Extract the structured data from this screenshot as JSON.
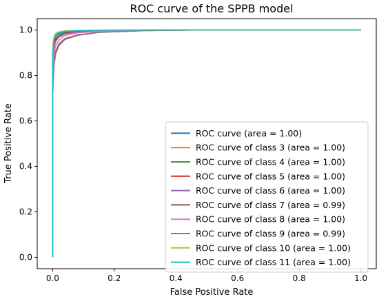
{
  "chart_data": {
    "type": "line",
    "title": "ROC curve of the SPPB model",
    "xlabel": "False Positive Rate",
    "ylabel": "True Positive Rate",
    "xlim": [
      -0.05,
      1.05
    ],
    "ylim": [
      -0.05,
      1.05
    ],
    "xticks": [
      0.0,
      0.2,
      0.4,
      0.6,
      0.8,
      1.0
    ],
    "yticks": [
      0.0,
      0.2,
      0.4,
      0.6,
      0.8,
      1.0
    ],
    "xtick_labels": [
      "0.0",
      "0.2",
      "0.4",
      "0.6",
      "0.8",
      "1.0"
    ],
    "ytick_labels": [
      "0.0",
      "0.2",
      "0.4",
      "0.6",
      "0.8",
      "1.0"
    ],
    "grid": false,
    "legend_position": "lower-right",
    "series": [
      {
        "name": "ROC curve (area = 1.00)",
        "color": "#1f77b4",
        "x": [
          0,
          0,
          0.002,
          0.005,
          0.01,
          0.02,
          0.04,
          0.08,
          0.15,
          0.3,
          0.5,
          1.0
        ],
        "y": [
          0,
          0.85,
          0.92,
          0.955,
          0.975,
          0.985,
          0.992,
          0.996,
          0.998,
          0.999,
          1.0,
          1.0
        ]
      },
      {
        "name": "ROC curve of class 3 (area = 1.00)",
        "color": "#ff7f0e",
        "x": [
          0,
          0,
          0.002,
          0.005,
          0.01,
          0.02,
          0.04,
          0.08,
          0.15,
          0.3,
          0.5,
          1.0
        ],
        "y": [
          0,
          0.88,
          0.94,
          0.965,
          0.98,
          0.99,
          0.995,
          0.998,
          0.999,
          1.0,
          1.0,
          1.0
        ]
      },
      {
        "name": "ROC curve of class 4 (area = 1.00)",
        "color": "#2ca02c",
        "x": [
          0,
          0,
          0.002,
          0.005,
          0.01,
          0.02,
          0.04,
          0.08,
          0.15,
          0.3,
          0.5,
          1.0
        ],
        "y": [
          0,
          0.84,
          0.91,
          0.945,
          0.965,
          0.978,
          0.988,
          0.994,
          0.997,
          0.999,
          1.0,
          1.0
        ]
      },
      {
        "name": "ROC curve of class 5 (area = 1.00)",
        "color": "#d62728",
        "x": [
          0,
          0,
          0.002,
          0.005,
          0.01,
          0.02,
          0.04,
          0.08,
          0.15,
          0.3,
          0.5,
          1.0
        ],
        "y": [
          0,
          0.82,
          0.9,
          0.935,
          0.958,
          0.972,
          0.985,
          0.993,
          0.997,
          0.999,
          1.0,
          1.0
        ]
      },
      {
        "name": "ROC curve of class 6 (area = 1.00)",
        "color": "#9467bd",
        "x": [
          0,
          0,
          0.002,
          0.005,
          0.01,
          0.02,
          0.04,
          0.08,
          0.15,
          0.3,
          0.5,
          1.0
        ],
        "y": [
          0,
          0.8,
          0.88,
          0.925,
          0.95,
          0.968,
          0.982,
          0.991,
          0.996,
          0.999,
          1.0,
          1.0
        ]
      },
      {
        "name": "ROC curve of class 7 (area = 0.99)",
        "color": "#8c564b",
        "x": [
          0,
          0,
          0.002,
          0.005,
          0.01,
          0.02,
          0.04,
          0.08,
          0.15,
          0.3,
          0.5,
          1.0
        ],
        "y": [
          0,
          0.7,
          0.8,
          0.865,
          0.905,
          0.938,
          0.962,
          0.978,
          0.99,
          0.997,
          1.0,
          1.0
        ]
      },
      {
        "name": "ROC curve of class 8 (area = 1.00)",
        "color": "#e377c2",
        "x": [
          0,
          0,
          0.002,
          0.005,
          0.01,
          0.02,
          0.04,
          0.08,
          0.15,
          0.3,
          0.5,
          1.0
        ],
        "y": [
          0,
          0.75,
          0.84,
          0.895,
          0.93,
          0.955,
          0.975,
          0.987,
          0.994,
          0.998,
          1.0,
          1.0
        ]
      },
      {
        "name": "ROC curve of class 9 (area = 0.99)",
        "color": "#7f7f7f",
        "x": [
          0,
          0,
          0.002,
          0.005,
          0.01,
          0.02,
          0.04,
          0.08,
          0.15,
          0.3,
          0.5,
          1.0
        ],
        "y": [
          0,
          0.68,
          0.78,
          0.85,
          0.895,
          0.93,
          0.958,
          0.976,
          0.989,
          0.997,
          1.0,
          1.0
        ]
      },
      {
        "name": "ROC curve of class 10 (area = 1.00)",
        "color": "#bcbd22",
        "x": [
          0,
          0,
          0.002,
          0.005,
          0.01,
          0.02,
          0.04,
          0.08,
          0.15,
          0.3,
          0.5,
          1.0
        ],
        "y": [
          0,
          0.9,
          0.95,
          0.97,
          0.985,
          0.992,
          0.996,
          0.998,
          0.999,
          1.0,
          1.0,
          1.0
        ]
      },
      {
        "name": "ROC curve of class 11 (area = 1.00)",
        "color": "#17becf",
        "x": [
          0,
          0,
          0.002,
          0.005,
          0.01,
          0.02,
          0.04,
          0.08,
          0.15,
          0.3,
          0.5,
          1.0
        ],
        "y": [
          0,
          0.86,
          0.93,
          0.96,
          0.978,
          0.988,
          0.994,
          0.997,
          0.999,
          1.0,
          1.0,
          1.0
        ]
      }
    ]
  }
}
